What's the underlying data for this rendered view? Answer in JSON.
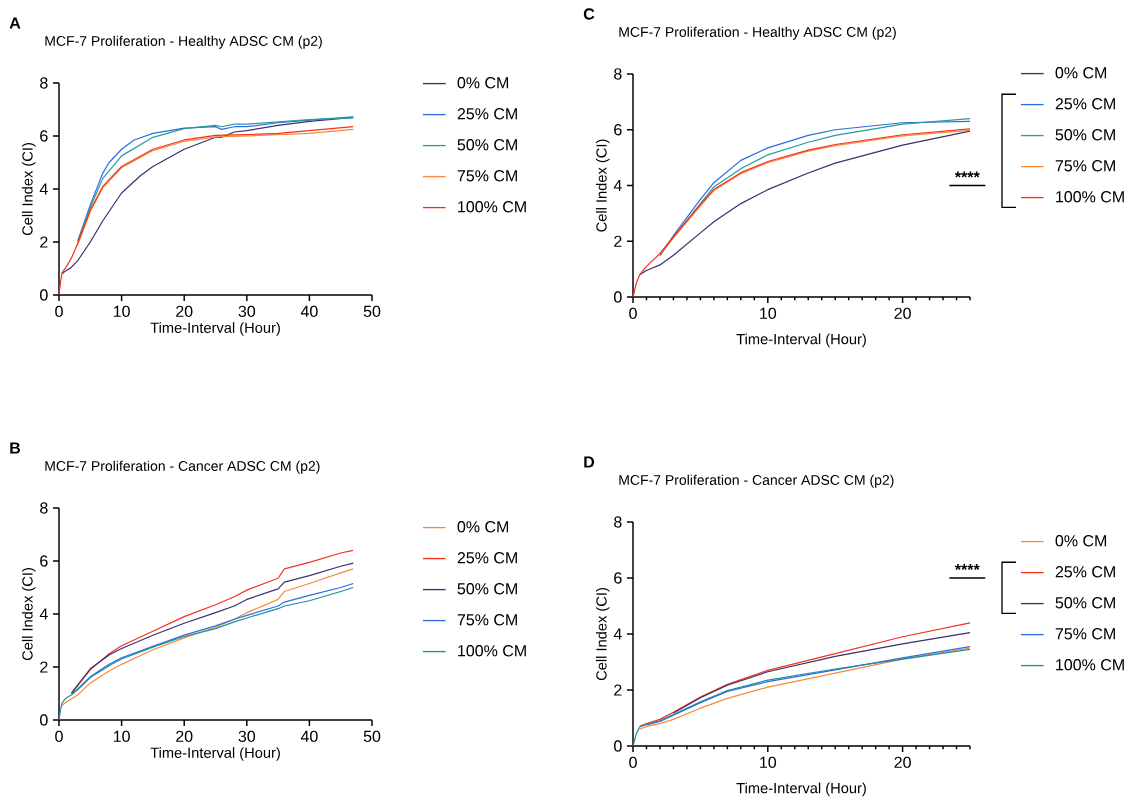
{
  "chart_data": [
    {
      "type": "line",
      "title": "MCF-7 Proliferation - Healthy ADSC CM (p2)",
      "xlabel": "Time-Interval (Hour)",
      "ylabel": "Cell Index (CI)",
      "xlim": [
        0,
        50
      ],
      "ylim": [
        0,
        8
      ],
      "xticks": [
        0,
        10,
        20,
        30,
        40,
        50
      ],
      "yticks": [
        0,
        2,
        4,
        6,
        8
      ],
      "legend": "right",
      "line_style": "solid",
      "annotations": [
        "A"
      ],
      "series": [
        {
          "name": "0% CM",
          "color": "#3b2f6e",
          "x": [
            0.5,
            1,
            2,
            3,
            5,
            7,
            10,
            13,
            15,
            20,
            25,
            26,
            28,
            30,
            35,
            40,
            47
          ],
          "values": [
            0.8,
            0.9,
            1.05,
            1.3,
            2.0,
            2.8,
            3.85,
            4.5,
            4.85,
            5.5,
            5.95,
            5.95,
            6.15,
            6.2,
            6.4,
            6.55,
            6.7
          ]
        },
        {
          "name": "25% CM",
          "color": "#2a6de0",
          "x": [
            3,
            5,
            7,
            8,
            10,
            12,
            15,
            20,
            25,
            26,
            28,
            30,
            35,
            40,
            47
          ],
          "values": [
            2.05,
            3.4,
            4.6,
            5.0,
            5.5,
            5.85,
            6.1,
            6.3,
            6.35,
            6.25,
            6.35,
            6.35,
            6.5,
            6.6,
            6.72
          ]
        },
        {
          "name": "50% CM",
          "color": "#2a9a9a",
          "x": [
            3,
            5,
            7,
            10,
            15,
            20,
            25,
            26,
            28,
            30,
            40,
            47
          ],
          "values": [
            2.0,
            3.3,
            4.4,
            5.25,
            5.95,
            6.28,
            6.4,
            6.35,
            6.45,
            6.45,
            6.62,
            6.68
          ]
        },
        {
          "name": "75% CM",
          "color": "#f98a3c",
          "x": [
            3,
            5,
            7,
            10,
            15,
            20,
            25,
            30,
            35,
            40,
            47
          ],
          "values": [
            1.9,
            3.15,
            4.05,
            4.8,
            5.45,
            5.8,
            5.97,
            6.0,
            6.05,
            6.1,
            6.25
          ]
        },
        {
          "name": "100% CM",
          "color": "#f5321a",
          "x": [
            0,
            0.25,
            0.5,
            1,
            2,
            3,
            5,
            7,
            10,
            15,
            20,
            25,
            30,
            35,
            40,
            47
          ],
          "values": [
            0,
            0.5,
            0.85,
            1.0,
            1.4,
            1.95,
            3.2,
            4.1,
            4.85,
            5.5,
            5.85,
            6.02,
            6.05,
            6.1,
            6.2,
            6.35
          ]
        }
      ]
    },
    {
      "type": "line",
      "title": "MCF-7 Proliferation - Healthy ADSC CM (p2)",
      "xlabel": "Time-Interval (Hour)",
      "ylabel": "Cell Index (CI)",
      "xlim": [
        0,
        25
      ],
      "ylim": [
        0,
        8
      ],
      "xticks": [
        0,
        {
          "value": 1,
          "label": null
        },
        {
          "value": 2,
          "label": null
        },
        {
          "value": 3,
          "label": null
        },
        {
          "value": 4,
          "label": null
        },
        {
          "value": 5,
          "label": null
        },
        {
          "value": 6,
          "label": null
        },
        {
          "value": 7,
          "label": null
        },
        {
          "value": 8,
          "label": null
        },
        {
          "value": 9,
          "label": null
        },
        10,
        {
          "value": 11,
          "label": null
        },
        {
          "value": 12,
          "label": null
        },
        {
          "value": 13,
          "label": null
        },
        {
          "value": 14,
          "label": null
        },
        {
          "value": 15,
          "label": null
        },
        {
          "value": 16,
          "label": null
        },
        {
          "value": 17,
          "label": null
        },
        {
          "value": 18,
          "label": null
        },
        {
          "value": 19,
          "label": null
        },
        20,
        {
          "value": 21,
          "label": null
        },
        {
          "value": 22,
          "label": null
        },
        {
          "value": 23,
          "label": null
        },
        {
          "value": 24,
          "label": null
        },
        {
          "value": 25,
          "label": null
        }
      ],
      "yticks": [
        0,
        2,
        4,
        6,
        8
      ],
      "legend": "right",
      "line_style": "solid",
      "annotations": [
        "C",
        "****"
      ],
      "series": [
        {
          "name": "0% CM",
          "color": "#3b2f6e",
          "x": [
            0.5,
            1,
            2,
            3,
            5,
            6,
            8,
            10,
            13,
            15,
            20,
            25
          ],
          "values": [
            0.8,
            0.95,
            1.15,
            1.5,
            2.3,
            2.7,
            3.35,
            3.85,
            4.45,
            4.8,
            5.45,
            5.95
          ]
        },
        {
          "name": "25% CM",
          "color": "#2a6de0",
          "x": [
            2,
            3,
            5,
            6,
            8,
            10,
            13,
            15,
            20,
            25
          ],
          "values": [
            1.5,
            2.2,
            3.5,
            4.1,
            4.9,
            5.35,
            5.8,
            6.0,
            6.25,
            6.3
          ]
        },
        {
          "name": "50% CM",
          "color": "#2a9a9a",
          "x": [
            2,
            3,
            5,
            6,
            8,
            10,
            13,
            15,
            20,
            25
          ],
          "values": [
            1.48,
            2.15,
            3.35,
            3.95,
            4.6,
            5.1,
            5.55,
            5.8,
            6.2,
            6.4
          ]
        },
        {
          "name": "75% CM",
          "color": "#f98a3c",
          "x": [
            2,
            3,
            5,
            6,
            8,
            10,
            13,
            15,
            20,
            25
          ],
          "values": [
            1.53,
            2.12,
            3.27,
            3.82,
            4.42,
            4.82,
            5.23,
            5.43,
            5.78,
            5.98
          ]
        },
        {
          "name": "100% CM",
          "color": "#f5321a",
          "x": [
            0,
            0.25,
            0.5,
            1,
            2,
            3,
            5,
            6,
            8,
            10,
            13,
            15,
            20,
            25
          ],
          "values": [
            0,
            0.5,
            0.8,
            1.1,
            1.56,
            2.16,
            3.31,
            3.86,
            4.46,
            4.86,
            5.27,
            5.47,
            5.82,
            6.03
          ]
        }
      ]
    },
    {
      "type": "line",
      "title": "MCF-7 Proliferation - Cancer ADSC CM (p2)",
      "xlabel": "Time-Interval (Hour)",
      "ylabel": "Cell Index (CI)",
      "xlim": [
        0,
        50
      ],
      "ylim": [
        0,
        8
      ],
      "xticks": [
        0,
        10,
        20,
        30,
        40,
        50
      ],
      "yticks": [
        0,
        2,
        4,
        6,
        8
      ],
      "legend": "right",
      "line_style": "solid",
      "annotations": [
        "B"
      ],
      "series": [
        {
          "name": "0% CM",
          "color": "#f98a3c",
          "x": [
            0.5,
            1,
            2,
            3,
            5,
            8,
            10,
            15,
            20,
            25,
            28,
            30,
            35,
            36,
            40,
            45,
            47
          ],
          "values": [
            0.55,
            0.65,
            0.8,
            0.95,
            1.4,
            1.85,
            2.1,
            2.65,
            3.1,
            3.5,
            3.8,
            4.05,
            4.55,
            4.85,
            5.15,
            5.55,
            5.7
          ]
        },
        {
          "name": "25% CM",
          "color": "#f5321a",
          "x": [
            2,
            3,
            5,
            8,
            10,
            15,
            20,
            25,
            28,
            30,
            35,
            36,
            40,
            45,
            47
          ],
          "values": [
            1.0,
            1.3,
            1.9,
            2.5,
            2.8,
            3.35,
            3.9,
            4.35,
            4.65,
            4.9,
            5.35,
            5.7,
            5.95,
            6.3,
            6.4
          ]
        },
        {
          "name": "50% CM",
          "color": "#3b2f6e",
          "x": [
            2,
            3,
            5,
            8,
            10,
            15,
            20,
            25,
            28,
            30,
            35,
            36,
            40,
            45,
            47
          ],
          "values": [
            1.02,
            1.33,
            1.93,
            2.45,
            2.7,
            3.2,
            3.65,
            4.05,
            4.3,
            4.55,
            4.95,
            5.2,
            5.45,
            5.8,
            5.92
          ]
        },
        {
          "name": "75% CM",
          "color": "#2a6de0",
          "x": [
            2,
            3,
            5,
            8,
            10,
            15,
            20,
            25,
            28,
            30,
            35,
            36,
            40,
            45,
            47
          ],
          "values": [
            0.97,
            1.17,
            1.63,
            2.1,
            2.35,
            2.78,
            3.2,
            3.55,
            3.8,
            3.95,
            4.3,
            4.45,
            4.7,
            5.0,
            5.15
          ]
        },
        {
          "name": "100% CM",
          "color": "#1e8f9a",
          "x": [
            0,
            0.25,
            0.5,
            1,
            2,
            3,
            5,
            8,
            10,
            15,
            20,
            25,
            28,
            30,
            35,
            36,
            40,
            45,
            47
          ],
          "values": [
            0,
            0.4,
            0.65,
            0.8,
            0.95,
            1.15,
            1.6,
            2.05,
            2.3,
            2.75,
            3.15,
            3.45,
            3.7,
            3.85,
            4.2,
            4.3,
            4.5,
            4.85,
            5.0
          ]
        }
      ]
    },
    {
      "type": "line",
      "title": "MCF-7 Proliferation - Cancer ADSC CM (p2)",
      "xlabel": "Time-Interval (Hour)",
      "ylabel": "Cell Index (CI)",
      "xlim": [
        0,
        25
      ],
      "ylim": [
        0,
        8
      ],
      "xticks": [
        0,
        {
          "value": 1,
          "label": null
        },
        {
          "value": 2,
          "label": null
        },
        {
          "value": 3,
          "label": null
        },
        {
          "value": 4,
          "label": null
        },
        {
          "value": 5,
          "label": null
        },
        {
          "value": 6,
          "label": null
        },
        {
          "value": 7,
          "label": null
        },
        {
          "value": 8,
          "label": null
        },
        {
          "value": 9,
          "label": null
        },
        10,
        {
          "value": 11,
          "label": null
        },
        {
          "value": 12,
          "label": null
        },
        {
          "value": 13,
          "label": null
        },
        {
          "value": 14,
          "label": null
        },
        {
          "value": 15,
          "label": null
        },
        {
          "value": 16,
          "label": null
        },
        {
          "value": 17,
          "label": null
        },
        {
          "value": 18,
          "label": null
        },
        {
          "value": 19,
          "label": null
        },
        20,
        {
          "value": 21,
          "label": null
        },
        {
          "value": 22,
          "label": null
        },
        {
          "value": 23,
          "label": null
        },
        {
          "value": 24,
          "label": null
        },
        {
          "value": 25,
          "label": null
        }
      ],
      "yticks": [
        0,
        2,
        4,
        6,
        8
      ],
      "legend": "right",
      "line_style": "solid",
      "annotations": [
        "D",
        "****"
      ],
      "series": [
        {
          "name": "0% CM",
          "color": "#f98a3c",
          "x": [
            0.5,
            1,
            2,
            3,
            5,
            7,
            10,
            15,
            20,
            25
          ],
          "values": [
            0.6,
            0.7,
            0.8,
            0.95,
            1.35,
            1.7,
            2.1,
            2.6,
            3.1,
            3.5
          ]
        },
        {
          "name": "25% CM",
          "color": "#f5321a",
          "x": [
            0.5,
            1,
            2,
            3,
            5,
            7,
            10,
            15,
            20,
            25
          ],
          "values": [
            0.7,
            0.8,
            0.95,
            1.2,
            1.75,
            2.2,
            2.7,
            3.3,
            3.9,
            4.4
          ]
        },
        {
          "name": "50% CM",
          "color": "#3b2f6e",
          "x": [
            3,
            5,
            7,
            10,
            15,
            20,
            25
          ],
          "values": [
            1.18,
            1.72,
            2.17,
            2.65,
            3.2,
            3.65,
            4.05
          ]
        },
        {
          "name": "75% CM",
          "color": "#2a6de0",
          "x": [
            1,
            2,
            3,
            5,
            7,
            10,
            15,
            20,
            25
          ],
          "values": [
            0.75,
            0.88,
            1.1,
            1.55,
            1.95,
            2.3,
            2.72,
            3.15,
            3.55
          ]
        },
        {
          "name": "100% CM",
          "color": "#1e8f9a",
          "x": [
            0,
            0.25,
            0.5,
            1,
            2,
            3,
            5,
            7,
            10,
            15,
            20,
            25
          ],
          "values": [
            0,
            0.45,
            0.68,
            0.77,
            0.9,
            1.12,
            1.58,
            1.98,
            2.35,
            2.75,
            3.1,
            3.45
          ]
        }
      ]
    }
  ]
}
